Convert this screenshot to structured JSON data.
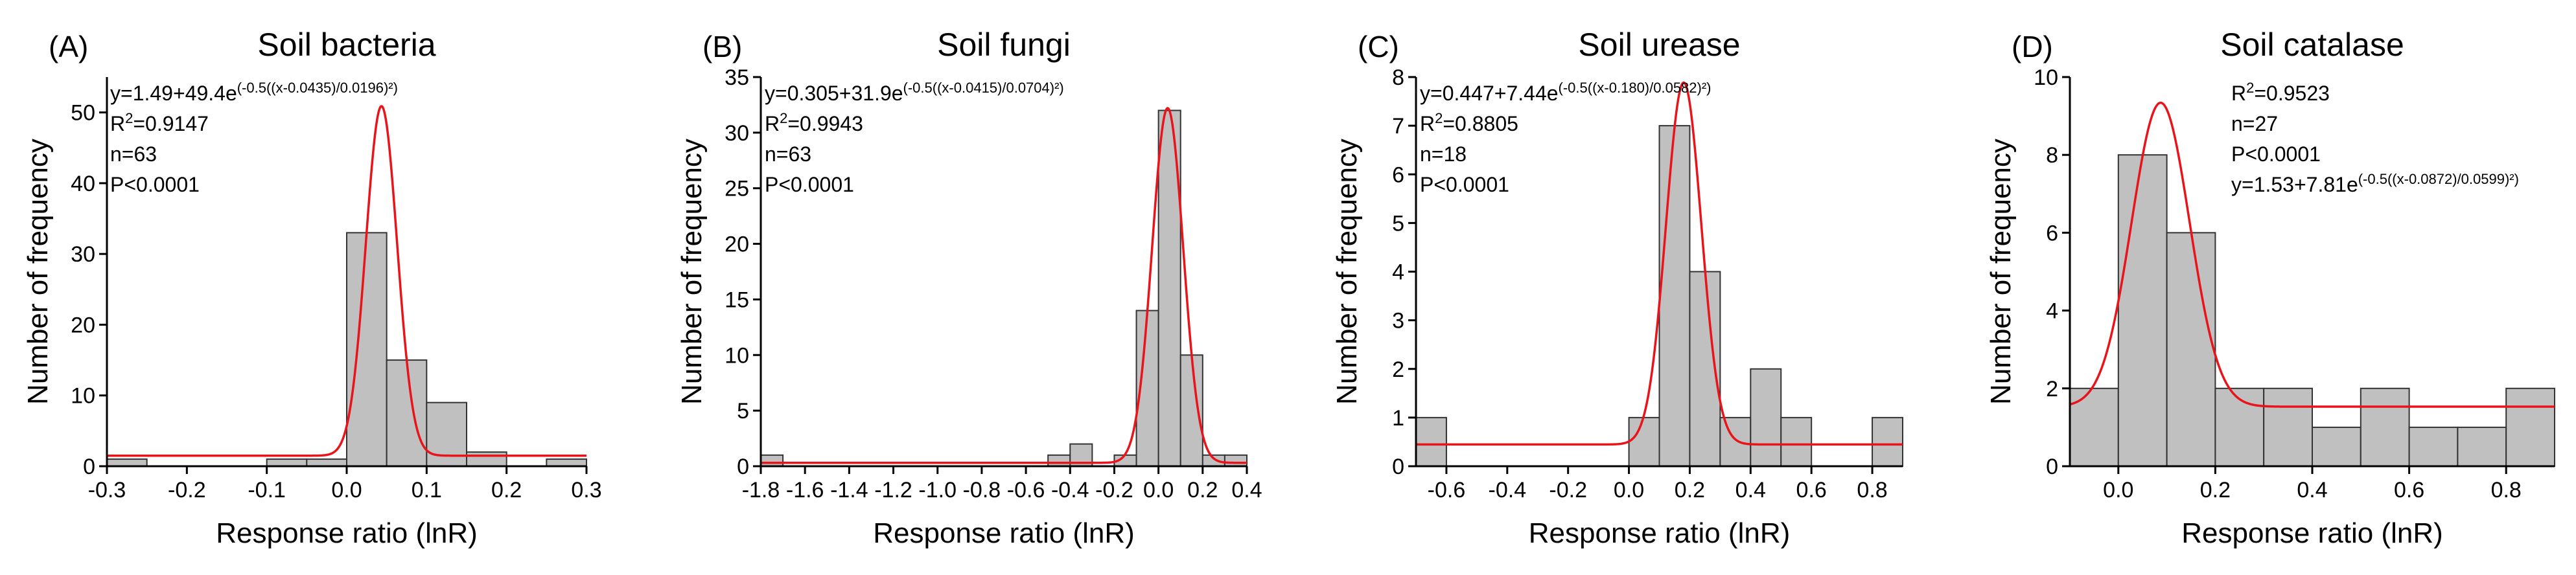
{
  "chart_data": [
    {
      "type": "histogram",
      "panel_label": "(A)",
      "title": "Soil bacteria",
      "x_label": "Response ratio (lnR)",
      "y_label": "Number of frequency",
      "bins": [
        -0.3,
        -0.25,
        -0.2,
        -0.15,
        -0.1,
        -0.05,
        0,
        0.05,
        0.1,
        0.15,
        0.2,
        0.25,
        0.3
      ],
      "counts": [
        1,
        0,
        0,
        0,
        1,
        1,
        33,
        15,
        9,
        2,
        0,
        1
      ],
      "xlim": [
        -0.3,
        0.3
      ],
      "xticks": [
        -0.3,
        -0.2,
        -0.1,
        {
          "value": 0,
          "label": "0.0"
        },
        0.1,
        0.2,
        0.3
      ],
      "ylim": [
        0,
        55
      ],
      "yticks": [
        0,
        10,
        20,
        30,
        40,
        50
      ],
      "bar_color": "#c0c0c0",
      "fit_color": "#e8141a",
      "fit": {
        "y0": 1.49,
        "A": 49.4,
        "xc": 0.0435,
        "w": 0.0196
      },
      "annotations": [
        {
          "text": "y=1.49+49.4e",
          "sup": "(-0.5((x-0.0435)/0.0196)²)"
        },
        {
          "text": "R",
          "sup": "2",
          "after": "=0.9147"
        },
        {
          "text": "n=63"
        },
        {
          "text": "P<0.0001"
        }
      ]
    },
    {
      "type": "histogram",
      "panel_label": "(B)",
      "title": "Soil fungi",
      "x_label": "Response ratio (lnR)",
      "y_label": "Number of frequency",
      "bins": [
        -1.8,
        -1.7,
        -1.6,
        -1.5,
        -1.4,
        -1.3,
        -1.2,
        -1.1,
        -1.0,
        -0.9,
        -0.8,
        -0.7,
        -0.6,
        -0.5,
        -0.4,
        -0.3,
        -0.2,
        -0.1,
        0,
        0.1,
        0.2,
        0.3,
        0.4
      ],
      "counts": [
        1,
        0,
        0,
        0,
        0,
        0,
        0,
        0,
        0,
        0,
        0,
        0,
        0,
        1,
        2,
        0,
        1,
        14,
        32,
        10,
        1,
        1
      ],
      "xlim": [
        -1.8,
        0.4
      ],
      "xticks": [
        -1.8,
        -1.6,
        -1.4,
        -1.2,
        {
          "value": -1.0,
          "label": "-1.0"
        },
        -0.8,
        -0.6,
        -0.4,
        -0.2,
        {
          "value": 0,
          "label": "0.0"
        },
        0.2,
        0.4
      ],
      "ylim": [
        0,
        35
      ],
      "yticks": [
        0,
        5,
        10,
        15,
        20,
        25,
        30,
        35
      ],
      "bar_color": "#c0c0c0",
      "fit_color": "#e8141a",
      "fit": {
        "y0": 0.305,
        "A": 31.9,
        "xc": 0.0415,
        "w": 0.0704
      },
      "annotations": [
        {
          "text": "y=0.305+31.9e",
          "sup": "(-0.5((x-0.0415)/0.0704)²)"
        },
        {
          "text": "R",
          "sup": "2",
          "after": "=0.9943"
        },
        {
          "text": "n=63"
        },
        {
          "text": "P<0.0001"
        }
      ]
    },
    {
      "type": "histogram",
      "panel_label": "(C)",
      "title": "Soil urease",
      "x_label": "Response ratio (lnR)",
      "y_label": "Number of frequency",
      "bins": [
        -0.7,
        -0.6,
        -0.5,
        -0.4,
        -0.3,
        -0.2,
        -0.1,
        0,
        0.1,
        0.2,
        0.3,
        0.4,
        0.5,
        0.6,
        0.7,
        0.8,
        0.9
      ],
      "counts": [
        1,
        0,
        0,
        0,
        0,
        0,
        0,
        1,
        7,
        4,
        1,
        2,
        1,
        0,
        0,
        1
      ],
      "xlim": [
        -0.7,
        0.9
      ],
      "xticks": [
        -0.6,
        -0.4,
        -0.2,
        {
          "value": 0,
          "label": "0.0"
        },
        0.2,
        0.4,
        0.6,
        0.8
      ],
      "ylim": [
        0,
        8
      ],
      "yticks": [
        0,
        1,
        2,
        3,
        4,
        5,
        6,
        7,
        8
      ],
      "bar_color": "#c0c0c0",
      "fit_color": "#e8141a",
      "fit": {
        "y0": 0.447,
        "A": 7.44,
        "xc": 0.18,
        "w": 0.0582
      },
      "annotations": [
        {
          "text": "y=0.447+7.44e",
          "sup": "(-0.5((x-0.180)/0.0582)²)"
        },
        {
          "text": "R",
          "sup": "2",
          "after": "=0.8805"
        },
        {
          "text": "n=18"
        },
        {
          "text": "P<0.0001"
        }
      ]
    },
    {
      "type": "histogram",
      "panel_label": "(D)",
      "title": "Soil catalase",
      "x_label": "Response ratio (lnR)",
      "y_label": "Number of frequency",
      "bins": [
        -0.1,
        0,
        0.1,
        0.2,
        0.3,
        0.4,
        0.5,
        0.6,
        0.7,
        0.8,
        0.9
      ],
      "counts": [
        2,
        8,
        6,
        2,
        2,
        1,
        2,
        1,
        1,
        2
      ],
      "xlim": [
        -0.1,
        0.9
      ],
      "xticks": [
        {
          "value": 0,
          "label": "0.0"
        },
        0.2,
        0.4,
        0.6,
        0.8
      ],
      "ylim": [
        0,
        10
      ],
      "yticks": [
        0,
        2,
        4,
        6,
        8,
        10
      ],
      "bar_color": "#c0c0c0",
      "fit_color": "#e8141a",
      "fit": {
        "y0": 1.53,
        "A": 7.81,
        "xc": 0.0872,
        "w": 0.0599
      },
      "annotations": [
        {
          "text": "R",
          "sup": "2",
          "after": "=0.9523"
        },
        {
          "text": "n=27"
        },
        {
          "text": "P<0.0001"
        },
        {
          "text": "y=1.53+7.81e",
          "sup": "(-0.5((x-0.0872)/0.0599)²)"
        }
      ]
    }
  ]
}
